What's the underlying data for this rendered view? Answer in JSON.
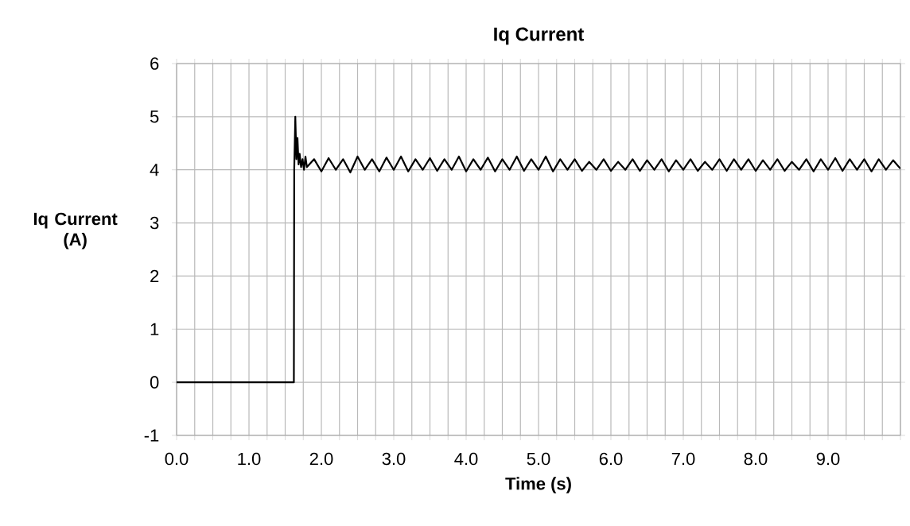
{
  "chart_data": {
    "type": "line",
    "title": "Iq Current",
    "xlabel": "Time  (s)",
    "ylabel": "Iq Current (A)",
    "x": [
      0,
      1.62,
      1.625,
      1.64,
      1.655,
      1.67,
      1.685,
      1.7,
      1.72,
      1.74,
      1.76,
      1.78,
      1.8,
      1.9,
      2.0,
      2.1,
      2.2,
      2.3,
      2.4,
      2.5,
      2.6,
      2.7,
      2.8,
      2.9,
      3.0,
      3.1,
      3.2,
      3.3,
      3.4,
      3.5,
      3.6,
      3.7,
      3.8,
      3.9,
      4.0,
      4.1,
      4.2,
      4.3,
      4.4,
      4.5,
      4.6,
      4.7,
      4.8,
      4.9,
      5.0,
      5.1,
      5.2,
      5.3,
      5.4,
      5.5,
      5.6,
      5.7,
      5.8,
      5.9,
      6.0,
      6.1,
      6.2,
      6.3,
      6.4,
      6.5,
      6.6,
      6.7,
      6.8,
      6.9,
      7.0,
      7.1,
      7.2,
      7.3,
      7.4,
      7.5,
      7.6,
      7.7,
      7.8,
      7.9,
      8.0,
      8.1,
      8.2,
      8.3,
      8.4,
      8.5,
      8.6,
      8.7,
      8.8,
      8.9,
      9.0,
      9.1,
      9.2,
      9.3,
      9.4,
      9.5,
      9.6,
      9.7,
      9.8,
      9.9,
      10.0
    ],
    "series": [
      {
        "color": "#000000",
        "values": [
          0,
          0,
          4.0,
          5.0,
          4.2,
          4.6,
          4.1,
          4.3,
          4.05,
          4.2,
          4.0,
          4.25,
          4.05,
          4.2,
          3.97,
          4.22,
          4.0,
          4.2,
          3.95,
          4.25,
          4.0,
          4.2,
          3.97,
          4.23,
          4.0,
          4.25,
          3.97,
          4.2,
          4.0,
          4.22,
          3.98,
          4.2,
          4.0,
          4.25,
          3.97,
          4.2,
          4.0,
          4.23,
          3.97,
          4.2,
          4.0,
          4.25,
          3.98,
          4.2,
          4.0,
          4.25,
          3.97,
          4.2,
          4.0,
          4.2,
          3.98,
          4.15,
          4.0,
          4.2,
          3.98,
          4.15,
          4.0,
          4.2,
          3.98,
          4.18,
          4.0,
          4.2,
          3.97,
          4.18,
          4.0,
          4.2,
          3.98,
          4.15,
          4.0,
          4.2,
          3.98,
          4.2,
          4.0,
          4.2,
          3.98,
          4.18,
          4.0,
          4.2,
          3.98,
          4.15,
          4.0,
          4.2,
          3.97,
          4.2,
          4.0,
          4.22,
          3.98,
          4.2,
          4.0,
          4.2,
          3.97,
          4.2,
          4.0,
          4.18,
          4.02
        ]
      }
    ],
    "xlim": [
      0,
      10
    ],
    "xticks": [
      {
        "value": 0,
        "label": "0.0"
      },
      {
        "value": 0.25,
        "label": null
      },
      {
        "value": 0.5,
        "label": null
      },
      {
        "value": 0.75,
        "label": null
      },
      {
        "value": 1,
        "label": "1.0"
      },
      {
        "value": 1.25,
        "label": null
      },
      {
        "value": 1.5,
        "label": null
      },
      {
        "value": 1.75,
        "label": null
      },
      {
        "value": 2,
        "label": "2.0"
      },
      {
        "value": 2.25,
        "label": null
      },
      {
        "value": 2.5,
        "label": null
      },
      {
        "value": 2.75,
        "label": null
      },
      {
        "value": 3,
        "label": "3.0"
      },
      {
        "value": 3.25,
        "label": null
      },
      {
        "value": 3.5,
        "label": null
      },
      {
        "value": 3.75,
        "label": null
      },
      {
        "value": 4,
        "label": "4.0"
      },
      {
        "value": 4.25,
        "label": null
      },
      {
        "value": 4.5,
        "label": null
      },
      {
        "value": 4.75,
        "label": null
      },
      {
        "value": 5,
        "label": "5.0"
      },
      {
        "value": 5.25,
        "label": null
      },
      {
        "value": 5.5,
        "label": null
      },
      {
        "value": 5.75,
        "label": null
      },
      {
        "value": 6,
        "label": "6.0"
      },
      {
        "value": 6.25,
        "label": null
      },
      {
        "value": 6.5,
        "label": null
      },
      {
        "value": 6.75,
        "label": null
      },
      {
        "value": 7,
        "label": "7.0"
      },
      {
        "value": 7.25,
        "label": null
      },
      {
        "value": 7.5,
        "label": null
      },
      {
        "value": 7.75,
        "label": null
      },
      {
        "value": 8,
        "label": "8.0"
      },
      {
        "value": 8.25,
        "label": null
      },
      {
        "value": 8.5,
        "label": null
      },
      {
        "value": 8.75,
        "label": null
      },
      {
        "value": 9,
        "label": "9.0"
      },
      {
        "value": 9.25,
        "label": null
      },
      {
        "value": 9.5,
        "label": null
      },
      {
        "value": 9.75,
        "label": null
      },
      {
        "value": 10,
        "label": null
      }
    ],
    "ylim": [
      -1,
      6
    ],
    "yticks": [
      -1,
      0,
      1,
      2,
      3,
      4,
      5,
      6
    ],
    "grid": true
  }
}
